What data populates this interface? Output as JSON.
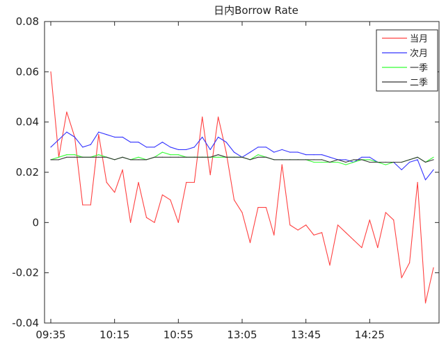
{
  "chart_data": {
    "type": "line",
    "title": "日内Borrow Rate",
    "xlabel": "",
    "ylabel": "",
    "ylim": [
      -0.04,
      0.08
    ],
    "yticks": [
      -0.04,
      -0.02,
      0,
      0.02,
      0.04,
      0.06,
      0.08
    ],
    "ytick_labels": [
      "-0.04",
      "-0.02",
      "0",
      "0.02",
      "0.04",
      "0.06",
      "0.08"
    ],
    "xticks": [
      {
        "index": 0,
        "label": "09:35"
      },
      {
        "index": 8,
        "label": "10:15"
      },
      {
        "index": 16,
        "label": "10:55"
      },
      {
        "index": 24,
        "label": "13:05"
      },
      {
        "index": 32,
        "label": "13:45"
      },
      {
        "index": 40,
        "label": "14:25"
      }
    ],
    "grid": false,
    "legend_position": "top-right",
    "series": [
      {
        "name": "当月",
        "color": "#ff4040",
        "values": [
          0.06,
          0.026,
          0.044,
          0.034,
          0.007,
          0.007,
          0.035,
          0.016,
          0.012,
          0.021,
          0.0,
          0.016,
          0.002,
          0.0,
          0.011,
          0.009,
          0.0,
          0.016,
          0.016,
          0.042,
          0.019,
          0.042,
          0.028,
          0.009,
          0.004,
          -0.008,
          0.006,
          0.006,
          -0.005,
          0.023,
          -0.001,
          -0.003,
          -0.001,
          -0.005,
          -0.004,
          -0.017,
          -0.001,
          -0.004,
          -0.007,
          -0.01,
          0.001,
          -0.01,
          0.004,
          0.001,
          -0.022,
          -0.016,
          0.016,
          -0.032,
          -0.018
        ]
      },
      {
        "name": "次月",
        "color": "#3333ff",
        "values": [
          0.03,
          0.033,
          0.036,
          0.034,
          0.03,
          0.031,
          0.036,
          0.035,
          0.034,
          0.034,
          0.032,
          0.032,
          0.03,
          0.03,
          0.032,
          0.03,
          0.029,
          0.029,
          0.03,
          0.034,
          0.029,
          0.034,
          0.032,
          0.028,
          0.026,
          0.028,
          0.03,
          0.03,
          0.028,
          0.029,
          0.028,
          0.028,
          0.027,
          0.027,
          0.027,
          0.026,
          0.025,
          0.025,
          0.024,
          0.026,
          0.026,
          0.024,
          0.024,
          0.024,
          0.021,
          0.024,
          0.025,
          0.017,
          0.021
        ]
      },
      {
        "name": "一季",
        "color": "#33ff33",
        "values": [
          0.025,
          0.026,
          0.027,
          0.027,
          0.026,
          0.026,
          0.027,
          0.026,
          0.025,
          0.026,
          0.025,
          0.026,
          0.025,
          0.026,
          0.028,
          0.027,
          0.027,
          0.026,
          0.026,
          0.026,
          0.026,
          0.026,
          0.026,
          0.026,
          0.026,
          0.025,
          0.027,
          0.026,
          0.025,
          0.025,
          0.025,
          0.025,
          0.025,
          0.024,
          0.024,
          0.024,
          0.024,
          0.023,
          0.024,
          0.025,
          0.025,
          0.024,
          0.023,
          0.024,
          0.024,
          0.025,
          0.026,
          0.024,
          0.026
        ]
      },
      {
        "name": "二季",
        "color": "#333333",
        "values": [
          0.025,
          0.025,
          0.026,
          0.026,
          0.026,
          0.026,
          0.026,
          0.026,
          0.025,
          0.026,
          0.025,
          0.025,
          0.025,
          0.026,
          0.026,
          0.026,
          0.026,
          0.026,
          0.026,
          0.026,
          0.026,
          0.027,
          0.026,
          0.026,
          0.026,
          0.025,
          0.026,
          0.026,
          0.025,
          0.025,
          0.025,
          0.025,
          0.025,
          0.025,
          0.025,
          0.024,
          0.025,
          0.024,
          0.025,
          0.025,
          0.024,
          0.024,
          0.024,
          0.024,
          0.024,
          0.025,
          0.026,
          0.024,
          0.025
        ]
      }
    ]
  }
}
